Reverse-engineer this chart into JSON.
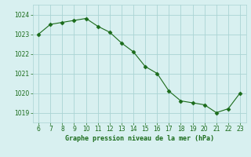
{
  "x": [
    6,
    7,
    8,
    9,
    10,
    11,
    12,
    13,
    14,
    15,
    16,
    17,
    18,
    19,
    20,
    21,
    22,
    23
  ],
  "y": [
    1023.0,
    1023.5,
    1023.6,
    1023.7,
    1023.8,
    1023.4,
    1023.1,
    1022.55,
    1022.1,
    1021.35,
    1021.0,
    1020.1,
    1019.6,
    1019.5,
    1019.4,
    1019.0,
    1019.2,
    1020.0
  ],
  "line_color": "#1a6b1a",
  "marker": "D",
  "marker_size": 2.5,
  "bg_color": "#d8f0f0",
  "grid_color": "#aad4d4",
  "xlabel": "Graphe pression niveau de la mer (hPa)",
  "xlabel_color": "#1a6b1a",
  "ylabel_color": "#1a6b1a",
  "tick_color": "#1a6b1a",
  "ylim": [
    1018.5,
    1024.5
  ],
  "yticks": [
    1019,
    1020,
    1021,
    1022,
    1023,
    1024
  ],
  "xlim": [
    5.5,
    23.5
  ],
  "xticks": [
    6,
    7,
    8,
    9,
    10,
    11,
    12,
    13,
    14,
    15,
    16,
    17,
    18,
    19,
    20,
    21,
    22,
    23
  ]
}
